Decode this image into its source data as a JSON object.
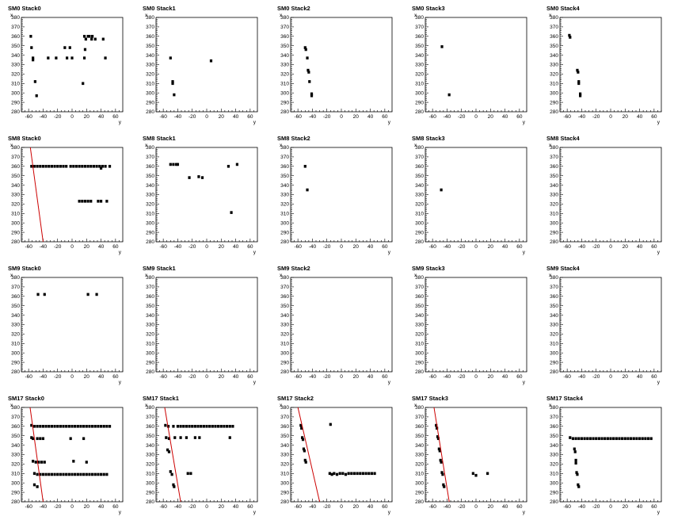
{
  "axes": {
    "xlabel": "y",
    "ylabel": "x",
    "xlim": [
      -70,
      70
    ],
    "ylim": [
      280,
      380
    ],
    "xticks": [
      "-60",
      "-40",
      "-20",
      "0",
      "20",
      "40",
      "60"
    ],
    "yticks": [
      "280",
      "290",
      "300",
      "310",
      "320",
      "330",
      "340",
      "350",
      "360",
      "370",
      "380"
    ]
  },
  "colors": {
    "points": "#000000",
    "line": "#cc0000",
    "frame": "#000000"
  },
  "chart_data": [
    {
      "title": "SM0 Stack0",
      "type": "scatter",
      "points": [
        [
          -57,
          360
        ],
        [
          -56,
          348
        ],
        [
          -54,
          337
        ],
        [
          -54,
          335
        ],
        [
          -51,
          312
        ],
        [
          -49,
          297
        ],
        [
          -33,
          337
        ],
        [
          -22,
          337
        ],
        [
          -10,
          348
        ],
        [
          -7,
          337
        ],
        [
          -3,
          348
        ],
        [
          0,
          337
        ],
        [
          15,
          310
        ],
        [
          17,
          337
        ],
        [
          18,
          346
        ],
        [
          17,
          360
        ],
        [
          19,
          357
        ],
        [
          22,
          360
        ],
        [
          24,
          360
        ],
        [
          27,
          357
        ],
        [
          28,
          360
        ],
        [
          32,
          357
        ],
        [
          43,
          357
        ],
        [
          46,
          337
        ]
      ],
      "line": null
    },
    {
      "title": "SM0 Stack1",
      "type": "scatter",
      "points": [
        [
          -50,
          337
        ],
        [
          -47,
          312
        ],
        [
          -47,
          310
        ],
        [
          -45,
          298
        ],
        [
          6,
          334
        ]
      ],
      "line": null
    },
    {
      "title": "SM0 Stack2",
      "type": "scatter",
      "points": [
        [
          -50,
          348
        ],
        [
          -49,
          346
        ],
        [
          -47,
          337
        ],
        [
          -46,
          324
        ],
        [
          -45,
          322
        ],
        [
          -44,
          312
        ],
        [
          -41,
          299
        ],
        [
          -41,
          297
        ]
      ],
      "line": null
    },
    {
      "title": "SM0 Stack3",
      "type": "scatter",
      "points": [
        [
          -47,
          349
        ],
        [
          -37,
          298
        ]
      ],
      "line": null
    },
    {
      "title": "SM0 Stack4",
      "type": "scatter",
      "points": [
        [
          -57,
          361
        ],
        [
          -56,
          359
        ],
        [
          -46,
          324
        ],
        [
          -45,
          322
        ],
        [
          -44,
          312
        ],
        [
          -44,
          310
        ],
        [
          -42,
          299
        ],
        [
          -42,
          297
        ]
      ],
      "line": null
    },
    {
      "title": "SM8 Stack0",
      "type": "scatter",
      "points": [
        [
          -56,
          360
        ],
        [
          -52,
          360
        ],
        [
          -48,
          360
        ],
        [
          -44,
          360
        ],
        [
          -40,
          360
        ],
        [
          -36,
          360
        ],
        [
          -32,
          360
        ],
        [
          -28,
          360
        ],
        [
          -24,
          360
        ],
        [
          -20,
          360
        ],
        [
          -16,
          360
        ],
        [
          -12,
          360
        ],
        [
          -8,
          360
        ],
        [
          -2,
          360
        ],
        [
          2,
          360
        ],
        [
          6,
          360
        ],
        [
          10,
          360
        ],
        [
          14,
          360
        ],
        [
          18,
          360
        ],
        [
          22,
          360
        ],
        [
          26,
          360
        ],
        [
          30,
          360
        ],
        [
          34,
          360
        ],
        [
          38,
          360
        ],
        [
          40,
          358
        ],
        [
          42,
          360
        ],
        [
          46,
          360
        ],
        [
          52,
          360
        ],
        [
          10,
          323
        ],
        [
          14,
          323
        ],
        [
          18,
          323
        ],
        [
          22,
          323
        ],
        [
          26,
          323
        ],
        [
          36,
          323
        ],
        [
          40,
          323
        ],
        [
          48,
          323
        ]
      ],
      "line": [
        [
          -58,
          382
        ],
        [
          -40,
          280
        ]
      ]
    },
    {
      "title": "SM8 Stack1",
      "type": "scatter",
      "points": [
        [
          -50,
          362
        ],
        [
          -46,
          362
        ],
        [
          -42,
          362
        ],
        [
          -40,
          362
        ],
        [
          -24,
          348
        ],
        [
          -11,
          349
        ],
        [
          -6,
          348
        ],
        [
          30,
          360
        ],
        [
          34,
          311
        ],
        [
          42,
          362
        ]
      ],
      "line": null
    },
    {
      "title": "SM8 Stack2",
      "type": "scatter",
      "points": [
        [
          -50,
          360
        ],
        [
          -47,
          335
        ]
      ],
      "line": null
    },
    {
      "title": "SM8 Stack3",
      "type": "scatter",
      "points": [
        [
          -48,
          335
        ]
      ],
      "line": null
    },
    {
      "title": "SM8 Stack4",
      "type": "scatter",
      "points": [],
      "line": null
    },
    {
      "title": "SM9 Stack0",
      "type": "scatter",
      "points": [
        [
          -47,
          362
        ],
        [
          -38,
          362
        ],
        [
          22,
          362
        ],
        [
          34,
          362
        ]
      ],
      "line": null
    },
    {
      "title": "SM9 Stack1",
      "type": "scatter",
      "points": [],
      "line": null
    },
    {
      "title": "SM9 Stack2",
      "type": "scatter",
      "points": [],
      "line": null
    },
    {
      "title": "SM9 Stack3",
      "type": "scatter",
      "points": [],
      "line": null
    },
    {
      "title": "SM9 Stack4",
      "type": "scatter",
      "points": [],
      "line": null
    },
    {
      "title": "SM17 Stack0",
      "type": "scatter",
      "points": [
        [
          -56,
          361
        ],
        [
          -52,
          360
        ],
        [
          -48,
          360
        ],
        [
          -44,
          360
        ],
        [
          -40,
          360
        ],
        [
          -36,
          360
        ],
        [
          -32,
          360
        ],
        [
          -28,
          360
        ],
        [
          -24,
          360
        ],
        [
          -20,
          360
        ],
        [
          -16,
          360
        ],
        [
          -12,
          360
        ],
        [
          -8,
          360
        ],
        [
          -4,
          360
        ],
        [
          0,
          360
        ],
        [
          4,
          360
        ],
        [
          8,
          360
        ],
        [
          12,
          360
        ],
        [
          16,
          360
        ],
        [
          20,
          360
        ],
        [
          24,
          360
        ],
        [
          28,
          360
        ],
        [
          32,
          360
        ],
        [
          36,
          360
        ],
        [
          40,
          360
        ],
        [
          44,
          360
        ],
        [
          48,
          360
        ],
        [
          52,
          360
        ],
        [
          -56,
          348
        ],
        [
          -54,
          347
        ],
        [
          -48,
          347
        ],
        [
          -44,
          347
        ],
        [
          -40,
          347
        ],
        [
          -2,
          347
        ],
        [
          16,
          347
        ],
        [
          -54,
          323
        ],
        [
          -50,
          322
        ],
        [
          -46,
          322
        ],
        [
          -42,
          322
        ],
        [
          -38,
          322
        ],
        [
          2,
          323
        ],
        [
          20,
          322
        ],
        [
          -52,
          310
        ],
        [
          -48,
          309
        ],
        [
          -44,
          309
        ],
        [
          -40,
          309
        ],
        [
          -36,
          309
        ],
        [
          -32,
          309
        ],
        [
          -28,
          309
        ],
        [
          -24,
          309
        ],
        [
          -20,
          309
        ],
        [
          -16,
          309
        ],
        [
          -12,
          309
        ],
        [
          -8,
          309
        ],
        [
          -4,
          309
        ],
        [
          0,
          309
        ],
        [
          4,
          309
        ],
        [
          8,
          309
        ],
        [
          12,
          309
        ],
        [
          16,
          309
        ],
        [
          20,
          309
        ],
        [
          24,
          309
        ],
        [
          28,
          309
        ],
        [
          32,
          309
        ],
        [
          36,
          309
        ],
        [
          40,
          309
        ],
        [
          44,
          309
        ],
        [
          48,
          309
        ],
        [
          -52,
          298
        ],
        [
          -48,
          296
        ]
      ],
      "line": [
        [
          -58,
          380
        ],
        [
          -40,
          280
        ]
      ]
    },
    {
      "title": "SM17 Stack1",
      "type": "scatter",
      "points": [
        [
          -57,
          361
        ],
        [
          -53,
          360
        ],
        [
          -46,
          360
        ],
        [
          -40,
          360
        ],
        [
          -36,
          360
        ],
        [
          -32,
          360
        ],
        [
          -28,
          360
        ],
        [
          -24,
          360
        ],
        [
          -20,
          360
        ],
        [
          -16,
          360
        ],
        [
          -12,
          360
        ],
        [
          -8,
          360
        ],
        [
          -4,
          360
        ],
        [
          0,
          360
        ],
        [
          4,
          360
        ],
        [
          8,
          360
        ],
        [
          12,
          360
        ],
        [
          16,
          360
        ],
        [
          20,
          360
        ],
        [
          24,
          360
        ],
        [
          28,
          360
        ],
        [
          32,
          360
        ],
        [
          36,
          360
        ],
        [
          -56,
          348
        ],
        [
          -52,
          347
        ],
        [
          -44,
          348
        ],
        [
          -36,
          348
        ],
        [
          -28,
          348
        ],
        [
          -16,
          348
        ],
        [
          -10,
          348
        ],
        [
          32,
          348
        ],
        [
          -54,
          335
        ],
        [
          -52,
          333
        ],
        [
          -50,
          312
        ],
        [
          -48,
          309
        ],
        [
          -26,
          310
        ],
        [
          -22,
          310
        ],
        [
          -46,
          298
        ],
        [
          -45,
          296
        ]
      ],
      "line": [
        [
          -58,
          380
        ],
        [
          -36,
          280
        ]
      ]
    },
    {
      "title": "SM17 Stack2",
      "type": "scatter",
      "points": [
        [
          -56,
          361
        ],
        [
          -55,
          358
        ],
        [
          -54,
          348
        ],
        [
          -53,
          346
        ],
        [
          -52,
          336
        ],
        [
          -51,
          334
        ],
        [
          -50,
          324
        ],
        [
          -49,
          322
        ],
        [
          -16,
          310
        ],
        [
          -13,
          309
        ],
        [
          -10,
          310
        ],
        [
          -6,
          309
        ],
        [
          -2,
          310
        ],
        [
          2,
          310
        ],
        [
          6,
          309
        ],
        [
          10,
          310
        ],
        [
          14,
          310
        ],
        [
          18,
          310
        ],
        [
          22,
          310
        ],
        [
          26,
          310
        ],
        [
          30,
          310
        ],
        [
          34,
          310
        ],
        [
          38,
          310
        ],
        [
          42,
          310
        ],
        [
          46,
          310
        ],
        [
          -15,
          362
        ]
      ],
      "line": [
        [
          -60,
          380
        ],
        [
          -30,
          280
        ]
      ]
    },
    {
      "title": "SM17 Stack3",
      "type": "scatter",
      "points": [
        [
          -55,
          361
        ],
        [
          -54,
          358
        ],
        [
          -53,
          349
        ],
        [
          -52,
          347
        ],
        [
          -51,
          336
        ],
        [
          -50,
          334
        ],
        [
          -49,
          324
        ],
        [
          -48,
          322
        ],
        [
          -47,
          311
        ],
        [
          -46,
          309
        ],
        [
          -45,
          298
        ],
        [
          -44,
          296
        ],
        [
          -4,
          310
        ],
        [
          0,
          308
        ],
        [
          16,
          310
        ]
      ],
      "line": [
        [
          -58,
          380
        ],
        [
          -37,
          280
        ]
      ]
    },
    {
      "title": "SM17 Stack4",
      "type": "scatter",
      "points": [
        [
          -56,
          348
        ],
        [
          -52,
          347
        ],
        [
          -48,
          347
        ],
        [
          -44,
          347
        ],
        [
          -40,
          347
        ],
        [
          -36,
          347
        ],
        [
          -32,
          347
        ],
        [
          -28,
          347
        ],
        [
          -24,
          347
        ],
        [
          -20,
          347
        ],
        [
          -16,
          347
        ],
        [
          -12,
          347
        ],
        [
          -8,
          347
        ],
        [
          -4,
          347
        ],
        [
          0,
          347
        ],
        [
          4,
          347
        ],
        [
          8,
          347
        ],
        [
          12,
          347
        ],
        [
          16,
          347
        ],
        [
          20,
          347
        ],
        [
          24,
          347
        ],
        [
          28,
          347
        ],
        [
          32,
          347
        ],
        [
          36,
          347
        ],
        [
          40,
          347
        ],
        [
          44,
          347
        ],
        [
          48,
          347
        ],
        [
          52,
          347
        ],
        [
          56,
          347
        ],
        [
          -50,
          336
        ],
        [
          -49,
          333
        ],
        [
          -48,
          324
        ],
        [
          -48,
          321
        ],
        [
          -47,
          311
        ],
        [
          -46,
          309
        ],
        [
          -45,
          298
        ],
        [
          -44,
          296
        ]
      ],
      "line": null
    }
  ]
}
